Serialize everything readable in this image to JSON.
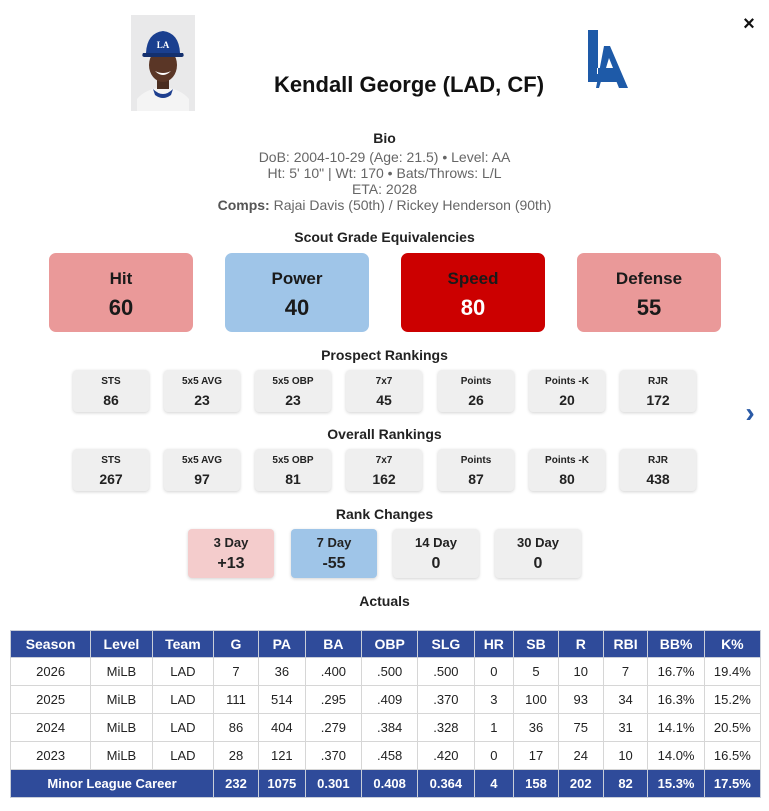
{
  "player": {
    "name": "Kendall George (LAD, CF)"
  },
  "close_label": "×",
  "bio": {
    "title": "Bio",
    "line1": "DoB: 2004-10-29 (Age: 21.5) • Level: AA",
    "line2": "Ht: 5' 10\" | Wt: 170 • Bats/Throws: L/L",
    "line3": "ETA: 2028",
    "comps_label": "Comps:",
    "comps_value": " Rajai Davis (50th) / Rickey Henderson (90th)"
  },
  "scout_grades": {
    "title": "Scout Grade Equivalencies",
    "items": [
      {
        "label": "Hit",
        "value": "60"
      },
      {
        "label": "Power",
        "value": "40"
      },
      {
        "label": "Speed",
        "value": "80"
      },
      {
        "label": "Defense",
        "value": "55"
      }
    ]
  },
  "prospect_rankings": {
    "title": "Prospect Rankings",
    "items": [
      {
        "label": "STS",
        "value": "86"
      },
      {
        "label": "5x5 AVG",
        "value": "23"
      },
      {
        "label": "5x5 OBP",
        "value": "23"
      },
      {
        "label": "7x7",
        "value": "45"
      },
      {
        "label": "Points",
        "value": "26"
      },
      {
        "label": "Points -K",
        "value": "20"
      },
      {
        "label": "RJR",
        "value": "172"
      }
    ]
  },
  "overall_rankings": {
    "title": "Overall Rankings",
    "items": [
      {
        "label": "STS",
        "value": "267"
      },
      {
        "label": "5x5 AVG",
        "value": "97"
      },
      {
        "label": "5x5 OBP",
        "value": "81"
      },
      {
        "label": "7x7",
        "value": "162"
      },
      {
        "label": "Points",
        "value": "87"
      },
      {
        "label": "Points -K",
        "value": "80"
      },
      {
        "label": "RJR",
        "value": "438"
      }
    ]
  },
  "next_label": "›",
  "rank_changes": {
    "title": "Rank Changes",
    "items": [
      {
        "label": "3 Day",
        "value": "+13",
        "color": "#f4cccc"
      },
      {
        "label": "7 Day",
        "value": "-55",
        "color": "#9fc5e8"
      },
      {
        "label": "14 Day",
        "value": "0",
        "color": "#efefef"
      },
      {
        "label": "30 Day",
        "value": "0",
        "color": "#efefef"
      }
    ]
  },
  "actuals": {
    "title": "Actuals",
    "headers": [
      "Season",
      "Level",
      "Team",
      "G",
      "PA",
      "BA",
      "OBP",
      "SLG",
      "HR",
      "SB",
      "R",
      "RBI",
      "BB%",
      "K%"
    ],
    "rows": [
      [
        "2026",
        "MiLB",
        "LAD",
        "7",
        "36",
        ".400",
        ".500",
        ".500",
        "0",
        "5",
        "10",
        "7",
        "16.7%",
        "19.4%"
      ],
      [
        "2025",
        "MiLB",
        "LAD",
        "111",
        "514",
        ".295",
        ".409",
        ".370",
        "3",
        "100",
        "93",
        "34",
        "16.3%",
        "15.2%"
      ],
      [
        "2024",
        "MiLB",
        "LAD",
        "86",
        "404",
        ".279",
        ".384",
        ".328",
        "1",
        "36",
        "75",
        "31",
        "14.1%",
        "20.5%"
      ],
      [
        "2023",
        "MiLB",
        "LAD",
        "28",
        "121",
        ".370",
        ".458",
        ".420",
        "0",
        "17",
        "24",
        "10",
        "14.0%",
        "16.5%"
      ]
    ],
    "career": [
      "Minor League Career",
      "232",
      "1075",
      "0.301",
      "0.408",
      "0.364",
      "4",
      "158",
      "202",
      "82",
      "15.3%",
      "17.5%"
    ]
  },
  "colors": {
    "accent": "#2f4b9a",
    "hit": "#ea9999",
    "power": "#9fc5e8",
    "speed": "#cc0000",
    "defense": "#ea9999"
  }
}
